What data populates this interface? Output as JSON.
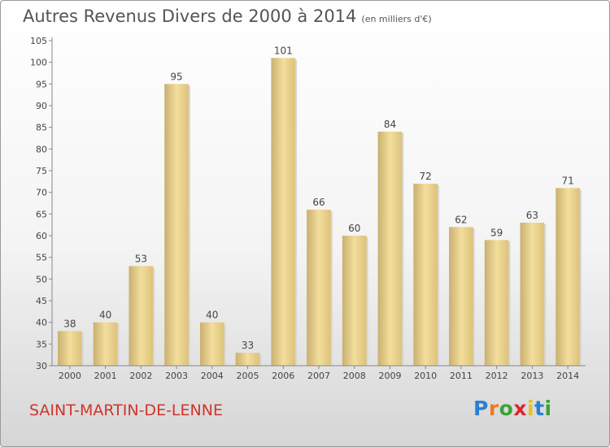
{
  "chart_data": {
    "type": "bar",
    "title": "Autres Revenus Divers de 2000 à 2014",
    "subtitle": "(en milliers d'€)",
    "categories": [
      "2000",
      "2001",
      "2002",
      "2003",
      "2004",
      "2005",
      "2006",
      "2007",
      "2008",
      "2009",
      "2010",
      "2011",
      "2012",
      "2013",
      "2014"
    ],
    "values": [
      38,
      40,
      53,
      95,
      40,
      33,
      101,
      66,
      60,
      84,
      72,
      62,
      59,
      63,
      71
    ],
    "ylim": [
      30,
      105
    ],
    "yticks": [
      30,
      35,
      40,
      45,
      50,
      55,
      60,
      65,
      70,
      75,
      80,
      85,
      90,
      95,
      100,
      105
    ],
    "grid": false,
    "data_labels": true
  },
  "place_name": "SAINT-MARTIN-DE-LENNE",
  "logo": {
    "letters": [
      "P",
      "r",
      "o",
      "x",
      "i",
      "t",
      "i"
    ],
    "colors": [
      "#2a7fd4",
      "#e87d1e",
      "#3aa33a",
      "#d8292f",
      "#e8c21e",
      "#2a7fd4",
      "#3aa33a"
    ]
  },
  "colors": {
    "bar": "#e6cf8c",
    "text": "#555555",
    "place": "#d0342c"
  }
}
